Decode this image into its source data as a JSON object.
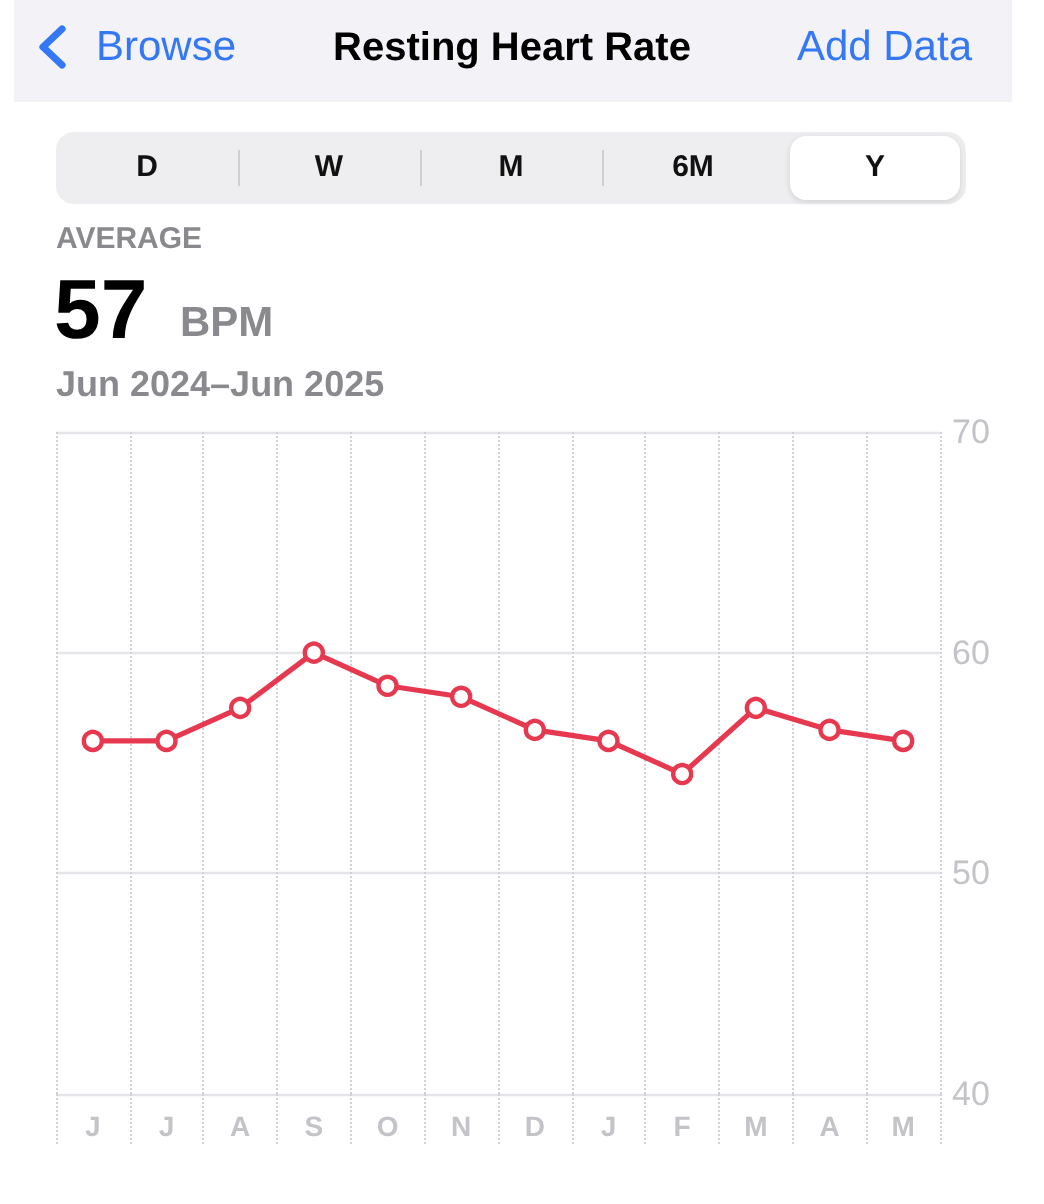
{
  "chart_data": {
    "type": "line",
    "title": "Resting Heart Rate",
    "subtitle": "Jun 2024–Jun 2025",
    "annotations": [
      "Browse",
      "Add Data",
      "D",
      "W",
      "M",
      "6M",
      "Y",
      "AVERAGE",
      "57",
      "BPM"
    ],
    "categories": [
      "J",
      "J",
      "A",
      "S",
      "O",
      "N",
      "D",
      "J",
      "F",
      "M",
      "A",
      "M"
    ],
    "series": [
      {
        "color": "#e63950",
        "values": [
          56,
          56,
          57.5,
          60,
          58.5,
          58,
          56.5,
          56,
          54.5,
          57.5,
          56.5,
          56
        ]
      }
    ],
    "ylim": [
      40,
      70
    ],
    "yticks": [
      40,
      50,
      60,
      70
    ],
    "grid": true,
    "marker": "circle",
    "line_style": "solid"
  }
}
